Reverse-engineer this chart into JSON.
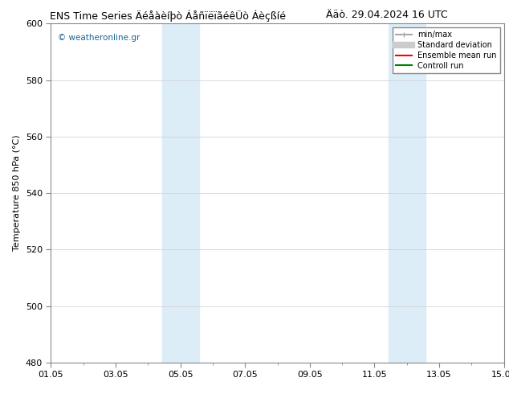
{
  "title_left": "ENS Time Series Äéåàèíþò ÁåñïëïãéêÜò Áèçßíé",
  "title_right": "Ääò. 29.04.2024 16 UTC",
  "ylabel": "Temperature 850 hPa (°C)",
  "ylim": [
    480,
    600
  ],
  "yticks": [
    480,
    500,
    520,
    540,
    560,
    580,
    600
  ],
  "xlabels": [
    "01.05",
    "03.05",
    "05.05",
    "07.05",
    "09.05",
    "11.05",
    "13.05",
    "15.05"
  ],
  "xtick_positions": [
    0,
    2,
    4,
    6,
    8,
    10,
    12,
    14
  ],
  "x_total_days": 14,
  "shade_bands": [
    {
      "x_start": 3.43,
      "x_end": 3.85,
      "color": "#ddedf7"
    },
    {
      "x_start": 3.85,
      "x_end": 4.57,
      "color": "#ddedf7"
    },
    {
      "x_start": 10.43,
      "x_end": 10.85,
      "color": "#ddedf7"
    },
    {
      "x_start": 10.85,
      "x_end": 11.57,
      "color": "#ddedf7"
    }
  ],
  "watermark": "© weatheronline.gr",
  "legend_entries": [
    {
      "label": "min/max",
      "color": "#aaaaaa",
      "lw": 1.5,
      "style": "solid"
    },
    {
      "label": "Standard deviation",
      "color": "#cccccc",
      "lw": 6,
      "style": "solid"
    },
    {
      "label": "Ensemble mean run",
      "color": "red",
      "lw": 1.5,
      "style": "solid"
    },
    {
      "label": "Controll run",
      "color": "green",
      "lw": 1.5,
      "style": "solid"
    }
  ],
  "bg_color": "#ffffff",
  "plot_bg_color": "#ffffff",
  "grid_color": "#cccccc",
  "title_fontsize": 9,
  "tick_fontsize": 8,
  "label_fontsize": 8
}
